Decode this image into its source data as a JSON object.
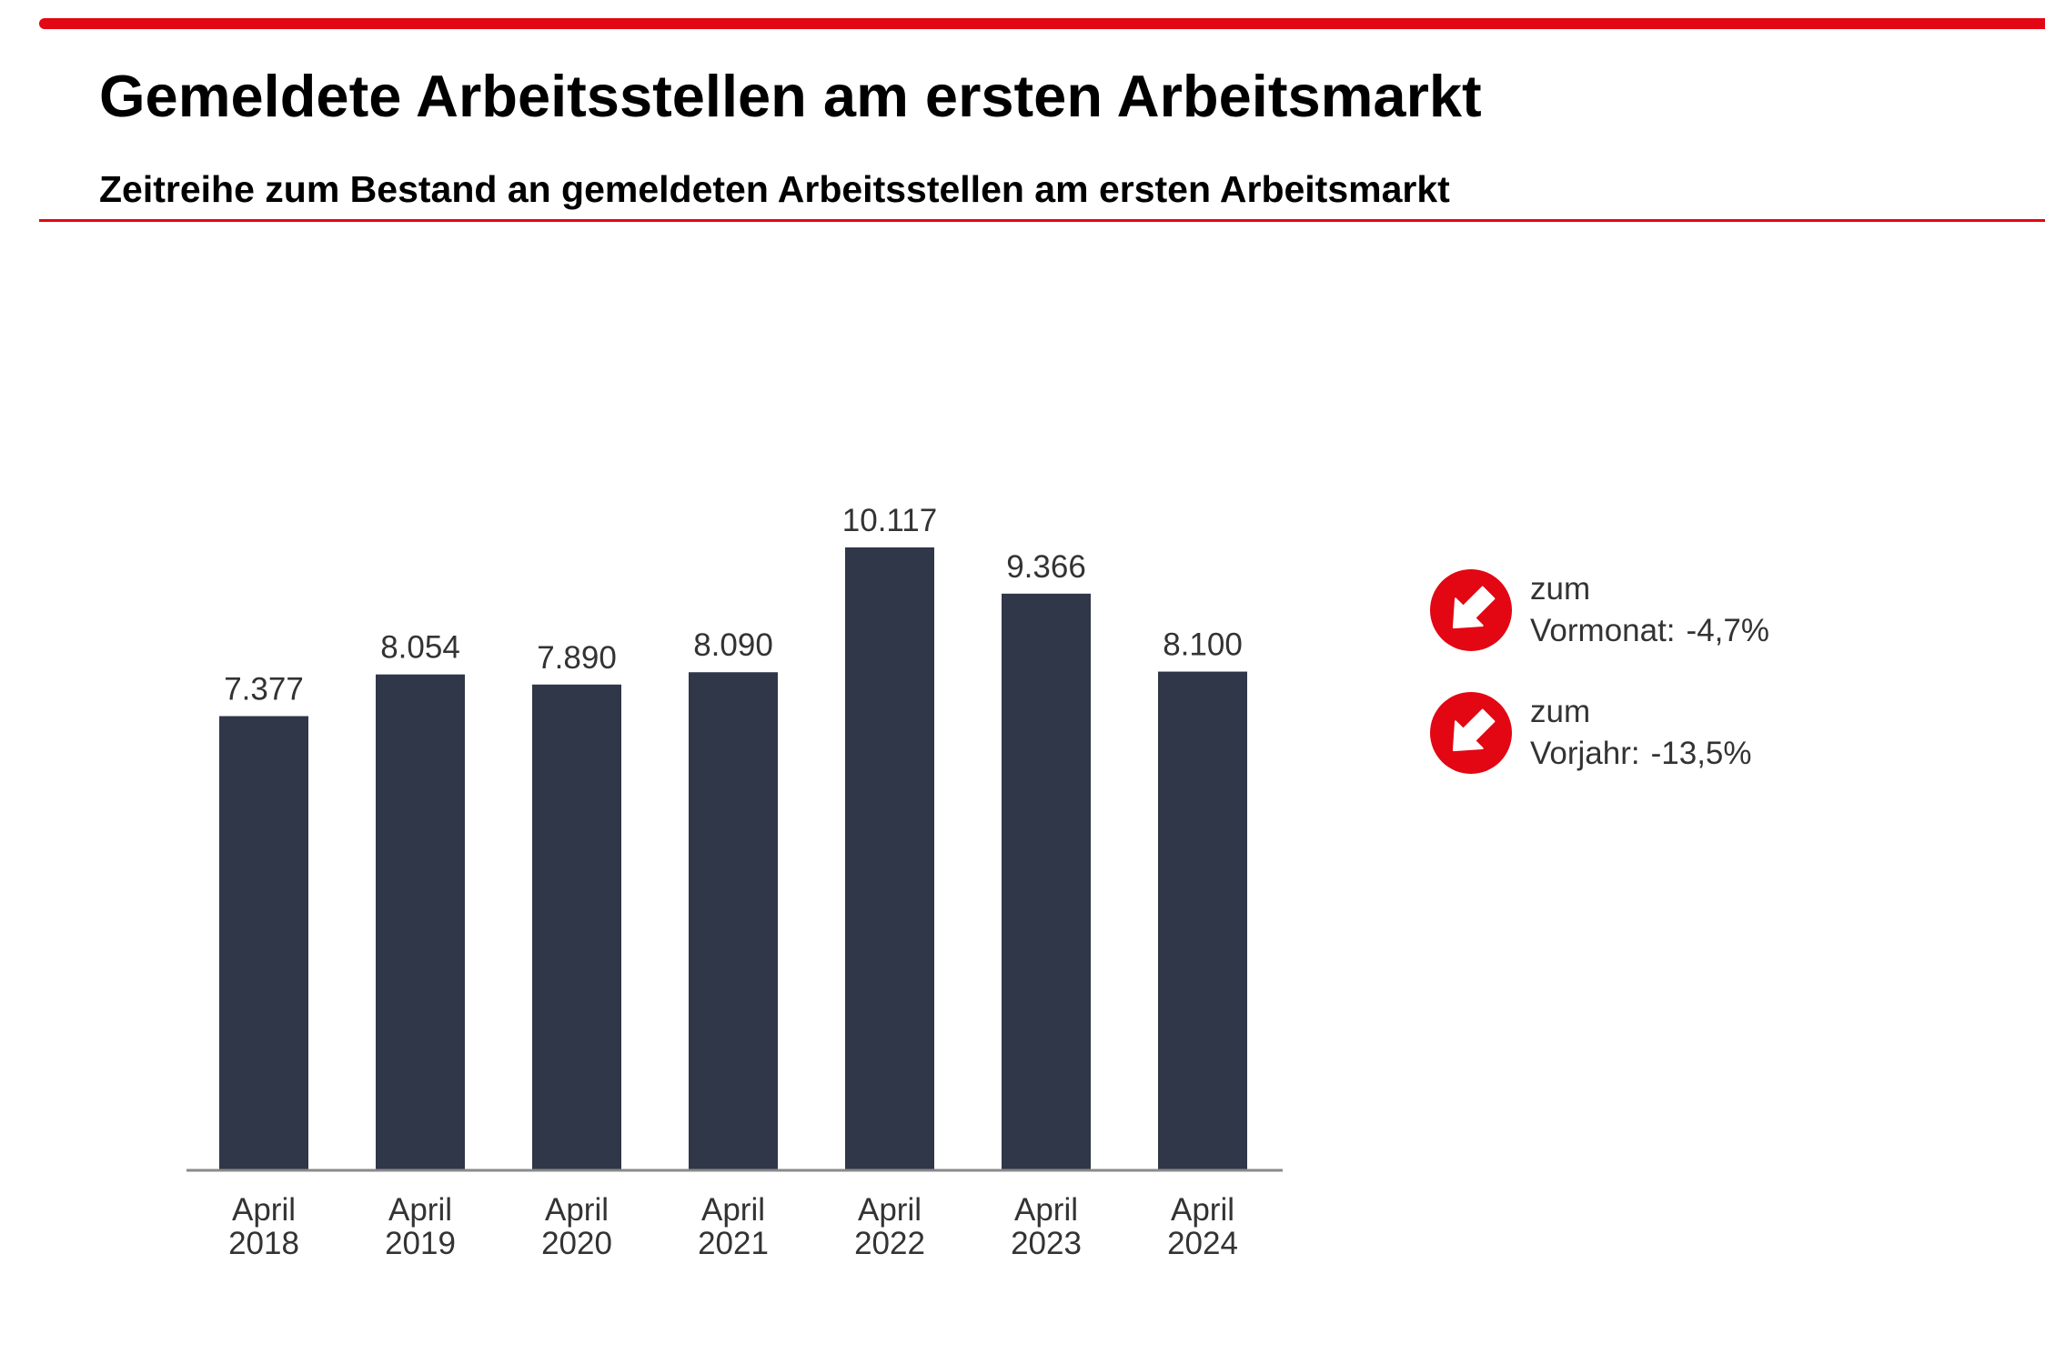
{
  "header": {
    "title": "Gemeldete Arbeitsstellen am ersten Arbeitsmarkt",
    "subtitle": "Zeitreihe zum Bestand an gemeldeten Arbeitsstellen am ersten Arbeitsmarkt"
  },
  "colors": {
    "accent": "#e30613",
    "bar": "#2f3749",
    "text": "#333333"
  },
  "chart_data": {
    "type": "bar",
    "categories": [
      [
        "April",
        "2018"
      ],
      [
        "April",
        "2019"
      ],
      [
        "April",
        "2020"
      ],
      [
        "April",
        "2021"
      ],
      [
        "April",
        "2022"
      ],
      [
        "April",
        "2023"
      ],
      [
        "April",
        "2024"
      ]
    ],
    "values": [
      7377,
      8054,
      7890,
      8090,
      10117,
      9366,
      8100
    ],
    "value_labels": [
      "7.377",
      "8.054",
      "7.890",
      "8.090",
      "10.117",
      "9.366",
      "8.100"
    ],
    "ylim": [
      0,
      10117
    ],
    "grid": false,
    "legend": "none"
  },
  "kpis": [
    {
      "icon": "arrow-down-right-icon",
      "line1": "zum",
      "label": "Vormonat:",
      "value": "-4,7%"
    },
    {
      "icon": "arrow-down-right-icon",
      "line1": "zum",
      "label": "Vorjahr:",
      "value": "-13,5%"
    }
  ]
}
